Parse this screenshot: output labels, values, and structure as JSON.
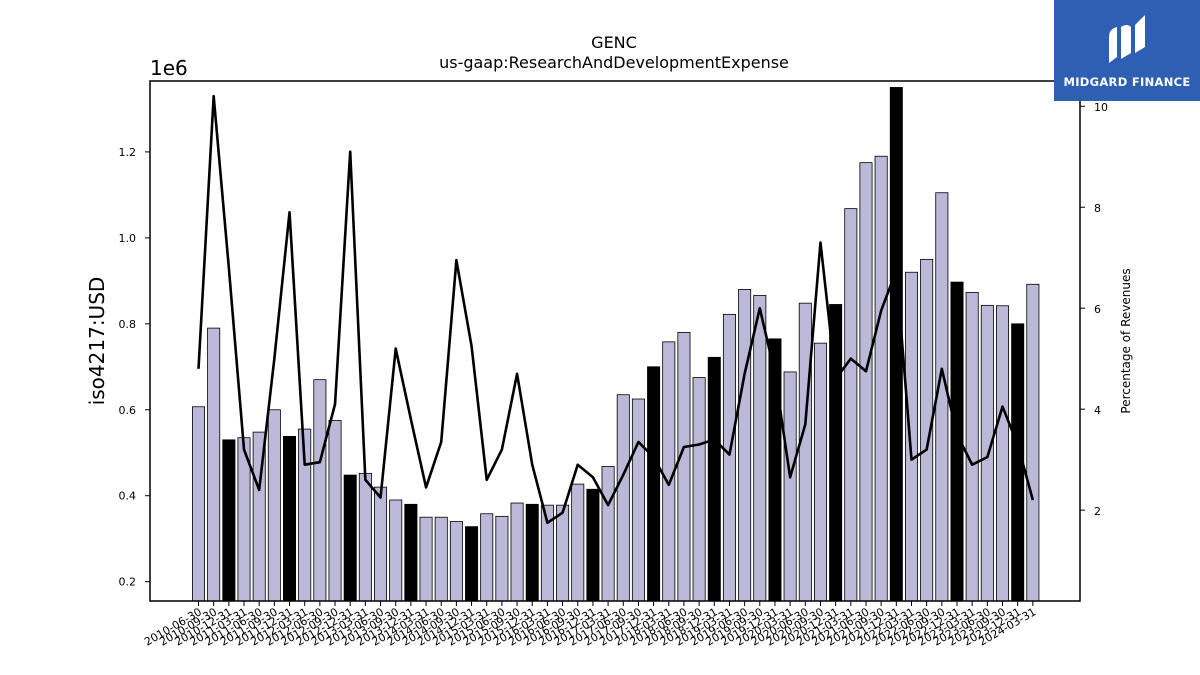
{
  "chart_data": {
    "type": "bar",
    "title": "GENC",
    "subtitle": "us-gaap:ResearchAndDevelopmentExpense",
    "ylabel": "iso4217:USD",
    "ylabel_right": "Percentage of Revenues",
    "y_offset_label": "1e6",
    "ylim": [
      0.155,
      1.365
    ],
    "ylim_right": [
      0.2,
      10.5
    ],
    "yticks": [
      0.2,
      0.4,
      0.6,
      0.8,
      1.0,
      1.2
    ],
    "yticks_right": [
      2,
      4,
      6,
      8,
      10
    ],
    "colors": {
      "bar_quarter": "#bcb9d8",
      "bar_annual": "#000000",
      "line": "#000000"
    },
    "x_tick_labels": [
      "2010-06-30",
      "2010-09-30",
      "2010-12-31",
      "2011-03-31",
      "2011-06-30",
      "2011-09-30",
      "2011-12-31",
      "2012-03-31",
      "2012-06-30",
      "2012-09-30",
      "2012-12-31",
      "2013-03-31",
      "2013-06-30",
      "2013-09-30",
      "2013-12-31",
      "2014-03-31",
      "2014-06-30",
      "2014-09-30",
      "2014-12-31",
      "2015-03-31",
      "2015-06-30",
      "2015-09-30",
      "2015-12-31",
      "2016-03-31",
      "2016-06-30",
      "2016-09-30",
      "2016-12-31",
      "2017-03-31",
      "2017-06-30",
      "2017-09-30",
      "2017-12-31",
      "2018-03-31",
      "2018-06-30",
      "2018-09-30",
      "2018-12-31",
      "2019-03-31",
      "2019-06-30",
      "2019-09-30",
      "2019-12-31",
      "2020-03-31",
      "2020-06-30",
      "2020-09-30",
      "2020-12-31",
      "2021-03-31",
      "2021-06-30",
      "2021-09-30",
      "2021-12-31",
      "2022-03-31",
      "2022-06-30",
      "2022-09-30",
      "2022-12-31",
      "2023-03-31",
      "2023-06-30",
      "2023-09-30",
      "2023-12-31",
      "2024-03-31"
    ],
    "series": [
      {
        "kind": "bar",
        "values": [
          0.607,
          0.79,
          0.53,
          0.535,
          0.548,
          0.6,
          0.538,
          0.555,
          0.67,
          0.575,
          0.448,
          0.452,
          0.42,
          0.39,
          0.38,
          0.35,
          0.35,
          0.34,
          0.328,
          0.358,
          0.352,
          0.383,
          0.38,
          0.378,
          0.378,
          0.427,
          0.415,
          0.468,
          0.635,
          0.625,
          0.7,
          0.758,
          0.78,
          0.675,
          0.722,
          0.822,
          0.88,
          0.866,
          0.765,
          0.688,
          0.848,
          0.755,
          0.845,
          1.068,
          1.175,
          1.19,
          1.35,
          0.92,
          0.95,
          1.105,
          0.897,
          0.873,
          0.843,
          0.842,
          0.8,
          0.892
        ],
        "annual": [
          false,
          false,
          true,
          false,
          false,
          false,
          true,
          false,
          false,
          false,
          true,
          false,
          false,
          false,
          true,
          false,
          false,
          false,
          true,
          false,
          false,
          false,
          true,
          false,
          false,
          false,
          true,
          false,
          false,
          false,
          true,
          false,
          false,
          false,
          true,
          false,
          false,
          false,
          true,
          false,
          false,
          false,
          true,
          false,
          false,
          false,
          true,
          false,
          false,
          false,
          true,
          false,
          false,
          false,
          true,
          false
        ]
      },
      {
        "kind": "line",
        "axis": "right",
        "values": [
          4.8,
          10.2,
          6.8,
          3.2,
          2.4,
          5.0,
          7.9,
          2.9,
          2.95,
          4.1,
          9.1,
          2.6,
          2.25,
          5.2,
          3.8,
          2.45,
          3.35,
          6.95,
          5.25,
          2.6,
          3.2,
          4.7,
          2.9,
          1.75,
          1.95,
          2.9,
          2.65,
          2.1,
          2.7,
          3.35,
          3.05,
          2.5,
          3.25,
          3.3,
          3.4,
          3.1,
          4.7,
          6.0,
          4.7,
          2.65,
          3.7,
          7.3,
          4.6,
          5.0,
          4.75,
          5.95,
          6.75,
          3.0,
          3.2,
          4.8,
          3.5,
          2.9,
          3.05,
          4.05,
          3.3,
          2.2
        ]
      }
    ]
  },
  "logo": {
    "name": "MIDGARD FINANCE"
  }
}
